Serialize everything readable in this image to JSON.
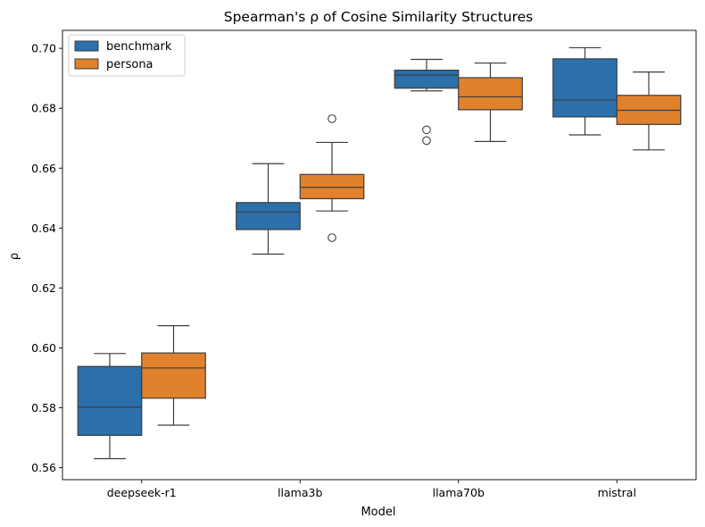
{
  "chart_data": {
    "type": "box",
    "title": "Spearman's ρ of Cosine Similarity Structures",
    "xlabel": "Model",
    "ylabel": "ρ",
    "categories": [
      "deepseek-r1",
      "llama3b",
      "llama70b",
      "mistral"
    ],
    "ylim": [
      0.556,
      0.706
    ],
    "yticks": [
      0.56,
      0.58,
      0.6,
      0.62,
      0.64,
      0.66,
      0.68,
      0.7
    ],
    "ytick_labels": [
      "0.56",
      "0.58",
      "0.60",
      "0.62",
      "0.64",
      "0.66",
      "0.68",
      "0.70"
    ],
    "grid": false,
    "legend_position": "top-left",
    "series": [
      {
        "name": "benchmark",
        "color": "#2b70aa",
        "boxes": [
          {
            "whisker_low": 0.563,
            "q1": 0.5708,
            "median": 0.5802,
            "q3": 0.5938,
            "whisker_high": 0.5981,
            "outliers": []
          },
          {
            "whisker_low": 0.6313,
            "q1": 0.6395,
            "median": 0.6454,
            "q3": 0.6485,
            "whisker_high": 0.6615,
            "outliers": []
          },
          {
            "whisker_low": 0.6858,
            "q1": 0.6867,
            "median": 0.6911,
            "q3": 0.6927,
            "whisker_high": 0.6963,
            "outliers": [
              0.6728,
              0.6692
            ]
          },
          {
            "whisker_low": 0.6711,
            "q1": 0.6771,
            "median": 0.6828,
            "q3": 0.6965,
            "whisker_high": 0.7002,
            "outliers": []
          }
        ]
      },
      {
        "name": "persona",
        "color": "#e1812c",
        "boxes": [
          {
            "whisker_low": 0.5742,
            "q1": 0.5832,
            "median": 0.5933,
            "q3": 0.5983,
            "whisker_high": 0.6074,
            "outliers": []
          },
          {
            "whisker_low": 0.6457,
            "q1": 0.6498,
            "median": 0.6536,
            "q3": 0.6579,
            "whisker_high": 0.6686,
            "outliers": [
              0.6765,
              0.6368
            ]
          },
          {
            "whisker_low": 0.6689,
            "q1": 0.6795,
            "median": 0.6838,
            "q3": 0.6902,
            "whisker_high": 0.6951,
            "outliers": []
          },
          {
            "whisker_low": 0.6661,
            "q1": 0.6746,
            "median": 0.6793,
            "q3": 0.6843,
            "whisker_high": 0.6921,
            "outliers": []
          }
        ]
      }
    ]
  }
}
